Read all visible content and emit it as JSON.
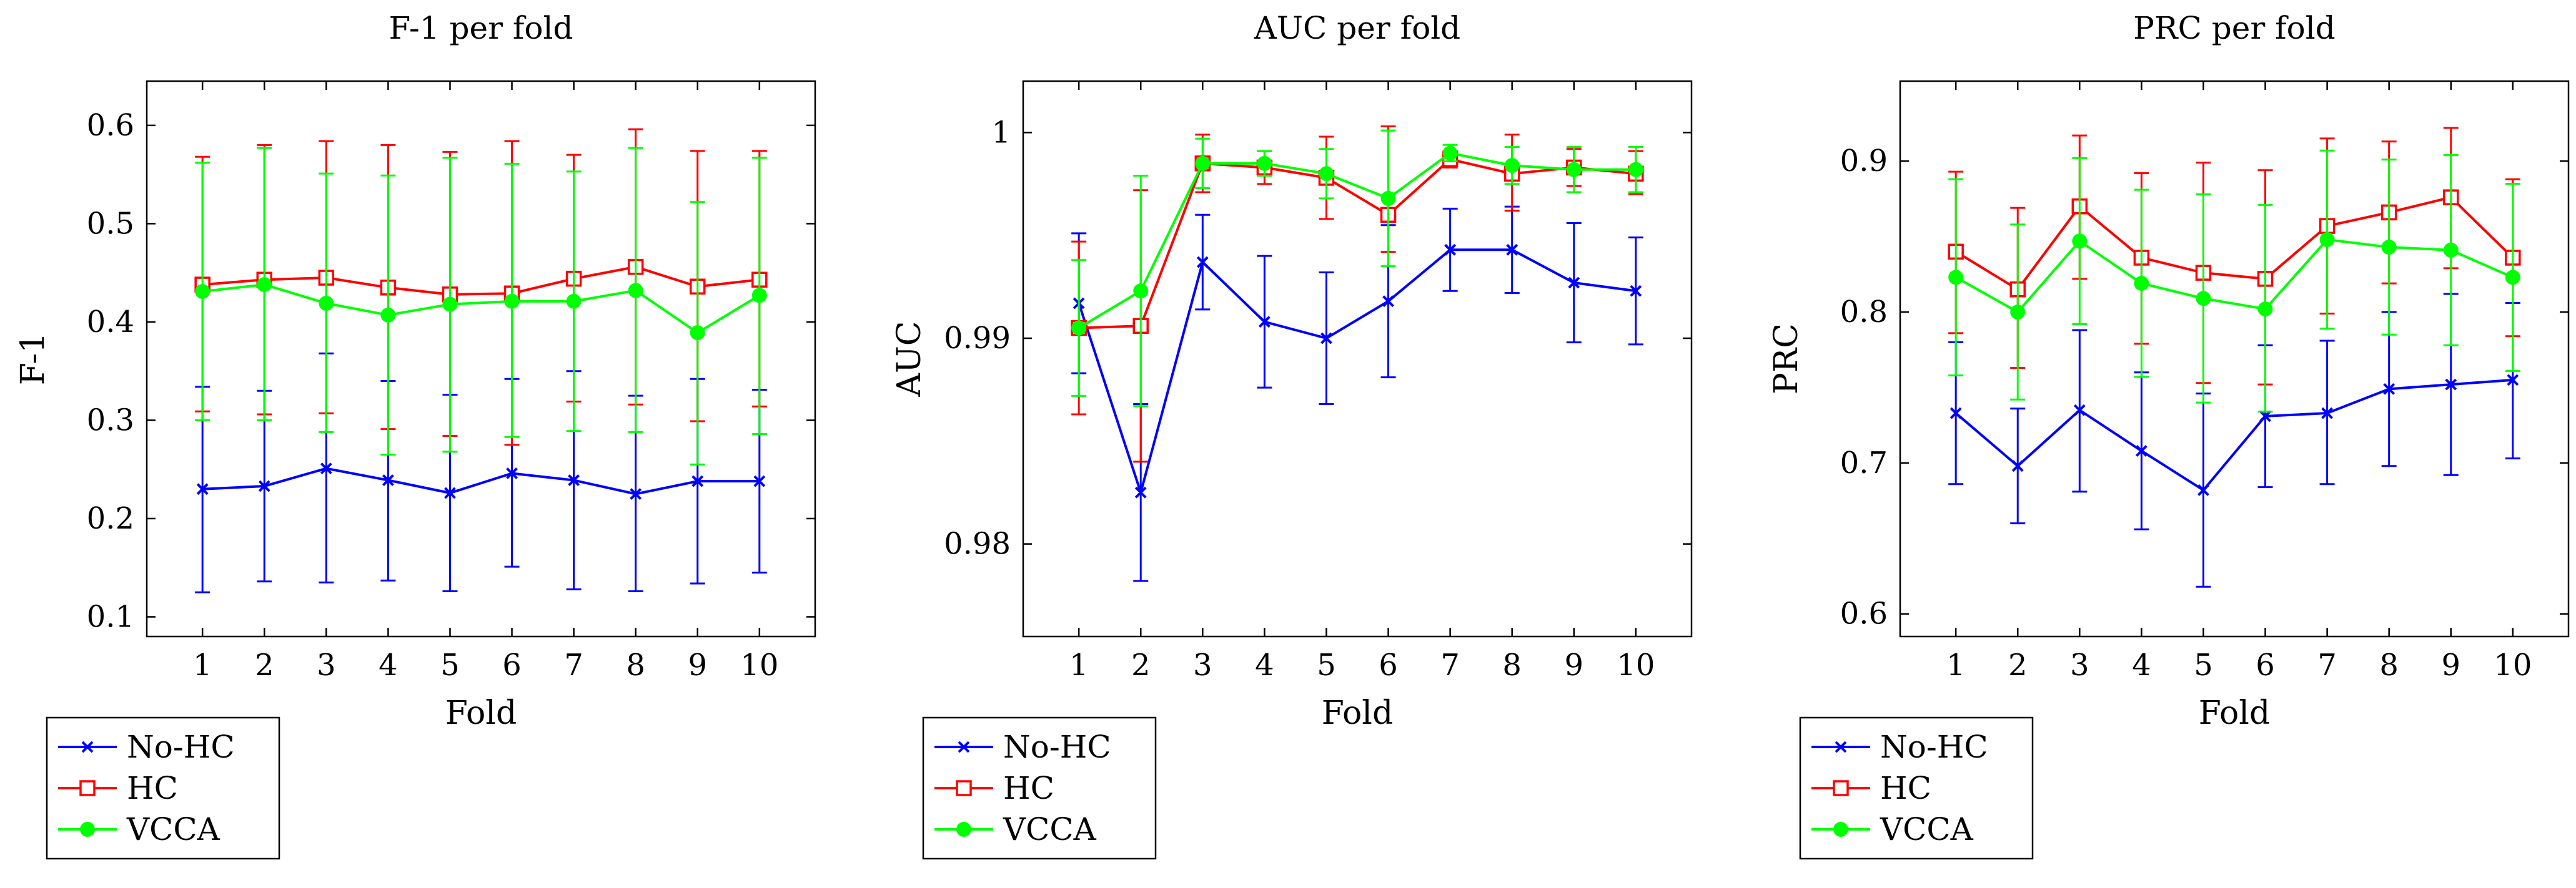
{
  "charts": [
    {
      "type": "line",
      "title": "F-1 per fold",
      "xlabel": "Fold",
      "ylabel": "F-1",
      "x": [
        1,
        2,
        3,
        4,
        5,
        6,
        7,
        8,
        9,
        10
      ],
      "xlim": [
        0.1,
        10.9
      ],
      "ylim": [
        0.08,
        0.645
      ],
      "yticks": [
        0.1,
        0.2,
        0.3,
        0.4,
        0.5,
        0.6
      ],
      "ytick_labels": [
        "0.1",
        "0.2",
        "0.3",
        "0.4",
        "0.5",
        "0.6"
      ],
      "legend_position": "below",
      "series": [
        {
          "name": "No-HC",
          "color": "#0000ff",
          "marker": "x",
          "values": [
            0.23,
            0.233,
            0.251,
            0.239,
            0.226,
            0.246,
            0.239,
            0.225,
            0.238,
            0.238
          ],
          "err_low": [
            0.125,
            0.136,
            0.135,
            0.137,
            0.126,
            0.151,
            0.128,
            0.126,
            0.134,
            0.145
          ],
          "err_high": [
            0.334,
            0.33,
            0.368,
            0.34,
            0.326,
            0.342,
            0.35,
            0.325,
            0.342,
            0.331
          ]
        },
        {
          "name": "HC",
          "color": "#ff0000",
          "marker": "square",
          "values": [
            0.438,
            0.443,
            0.445,
            0.435,
            0.428,
            0.429,
            0.444,
            0.456,
            0.436,
            0.443
          ],
          "err_low": [
            0.309,
            0.306,
            0.307,
            0.291,
            0.284,
            0.275,
            0.319,
            0.316,
            0.299,
            0.314
          ],
          "err_high": [
            0.568,
            0.58,
            0.584,
            0.58,
            0.573,
            0.584,
            0.57,
            0.596,
            0.574,
            0.574
          ]
        },
        {
          "name": "VCCA",
          "color": "#00ff00",
          "marker": "circle",
          "values": [
            0.431,
            0.438,
            0.419,
            0.407,
            0.418,
            0.421,
            0.421,
            0.432,
            0.389,
            0.427
          ],
          "err_low": [
            0.3,
            0.3,
            0.288,
            0.265,
            0.268,
            0.283,
            0.289,
            0.288,
            0.255,
            0.286
          ],
          "err_high": [
            0.562,
            0.577,
            0.551,
            0.549,
            0.567,
            0.561,
            0.553,
            0.577,
            0.522,
            0.567
          ]
        }
      ]
    },
    {
      "type": "line",
      "title": "AUC per fold",
      "xlabel": "Fold",
      "ylabel": "AUC",
      "x": [
        1,
        2,
        3,
        4,
        5,
        6,
        7,
        8,
        9,
        10
      ],
      "xlim": [
        0.1,
        10.9
      ],
      "ylim": [
        0.9755,
        1.0025
      ],
      "yticks": [
        0.98,
        0.99,
        1.0
      ],
      "ytick_labels": [
        "0.98",
        "0.99",
        "1"
      ],
      "legend_position": "below",
      "series": [
        {
          "name": "No-HC",
          "color": "#0000ff",
          "marker": "x",
          "values": [
            0.9917,
            0.9825,
            0.9937,
            0.9908,
            0.99,
            0.9918,
            0.9943,
            0.9943,
            0.9927,
            0.9923
          ],
          "err_low": [
            0.9883,
            0.9782,
            0.9914,
            0.9876,
            0.9868,
            0.9881,
            0.9923,
            0.9922,
            0.9898,
            0.9897
          ],
          "err_high": [
            0.9951,
            0.9868,
            0.996,
            0.994,
            0.9932,
            0.9955,
            0.9963,
            0.9964,
            0.9956,
            0.9949
          ]
        },
        {
          "name": "HC",
          "color": "#ff0000",
          "marker": "square",
          "values": [
            0.9905,
            0.9906,
            0.9985,
            0.9983,
            0.9978,
            0.996,
            0.9987,
            0.998,
            0.9983,
            0.998
          ],
          "err_low": [
            0.9863,
            0.984,
            0.9971,
            0.9975,
            0.9958,
            0.9942,
            0.9983,
            0.9962,
            0.9974,
            0.997
          ],
          "err_high": [
            0.9947,
            0.9972,
            0.9999,
            0.9991,
            0.9998,
            1.0003,
            0.9991,
            0.9999,
            0.9992,
            0.9991
          ]
        },
        {
          "name": "VCCA",
          "color": "#00ff00",
          "marker": "circle",
          "values": [
            0.9905,
            0.9923,
            0.9985,
            0.9985,
            0.998,
            0.9968,
            0.999,
            0.9984,
            0.9982,
            0.9982
          ],
          "err_low": [
            0.9872,
            0.9867,
            0.9973,
            0.9979,
            0.9968,
            0.9935,
            0.9986,
            0.9975,
            0.9971,
            0.9971
          ],
          "err_high": [
            0.9938,
            0.9979,
            0.9997,
            0.9991,
            0.9992,
            1.0001,
            0.9994,
            0.9993,
            0.9993,
            0.9993
          ]
        }
      ]
    },
    {
      "type": "line",
      "title": "PRC per fold",
      "xlabel": "Fold",
      "ylabel": "PRC",
      "x": [
        1,
        2,
        3,
        4,
        5,
        6,
        7,
        8,
        9,
        10
      ],
      "xlim": [
        0.1,
        10.9
      ],
      "ylim": [
        0.585,
        0.953
      ],
      "yticks": [
        0.6,
        0.7,
        0.8,
        0.9
      ],
      "ytick_labels": [
        "0.6",
        "0.7",
        "0.8",
        "0.9"
      ],
      "legend_position": "below",
      "series": [
        {
          "name": "No-HC",
          "color": "#0000ff",
          "marker": "x",
          "values": [
            0.733,
            0.698,
            0.735,
            0.708,
            0.682,
            0.731,
            0.733,
            0.749,
            0.752,
            0.755
          ],
          "err_low": [
            0.686,
            0.66,
            0.681,
            0.656,
            0.618,
            0.684,
            0.686,
            0.698,
            0.692,
            0.703
          ],
          "err_high": [
            0.78,
            0.736,
            0.788,
            0.76,
            0.746,
            0.778,
            0.781,
            0.8,
            0.812,
            0.806
          ]
        },
        {
          "name": "HC",
          "color": "#ff0000",
          "marker": "square",
          "values": [
            0.84,
            0.815,
            0.87,
            0.836,
            0.826,
            0.822,
            0.857,
            0.866,
            0.876,
            0.836
          ],
          "err_low": [
            0.786,
            0.763,
            0.822,
            0.779,
            0.753,
            0.752,
            0.799,
            0.819,
            0.829,
            0.784
          ],
          "err_high": [
            0.893,
            0.869,
            0.917,
            0.892,
            0.899,
            0.894,
            0.915,
            0.913,
            0.922,
            0.888
          ]
        },
        {
          "name": "VCCA",
          "color": "#00ff00",
          "marker": "circle",
          "values": [
            0.823,
            0.8,
            0.847,
            0.819,
            0.809,
            0.802,
            0.848,
            0.843,
            0.841,
            0.823
          ],
          "err_low": [
            0.758,
            0.742,
            0.792,
            0.757,
            0.74,
            0.734,
            0.789,
            0.785,
            0.778,
            0.761
          ],
          "err_high": [
            0.888,
            0.858,
            0.902,
            0.881,
            0.878,
            0.871,
            0.907,
            0.901,
            0.904,
            0.885
          ]
        }
      ]
    }
  ]
}
